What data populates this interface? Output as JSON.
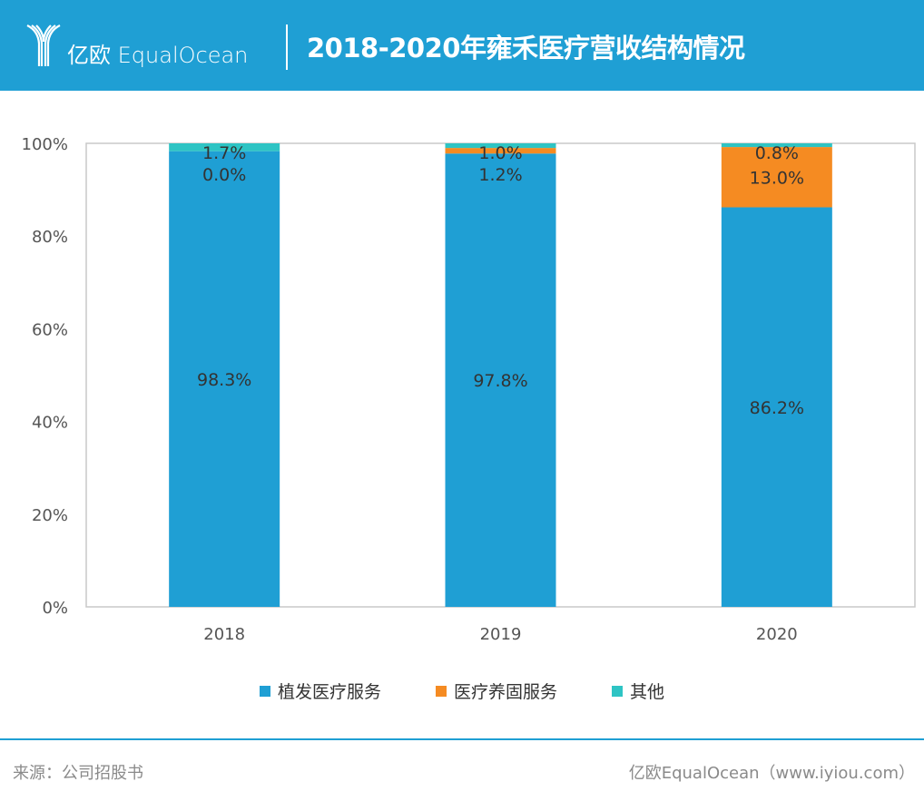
{
  "header": {
    "logo_text": "亿欧 EqualOcean",
    "title": "2018-2020年雍禾医疗营收结构情况"
  },
  "chart_data": {
    "type": "bar",
    "stacked": true,
    "percent": true,
    "categories": [
      "2018",
      "2019",
      "2020"
    ],
    "series": [
      {
        "name": "植发医疗服务",
        "color": "#1f9fd4",
        "values": [
          98.3,
          97.8,
          86.2
        ],
        "labels": [
          "98.3%",
          "97.8%",
          "86.2%"
        ]
      },
      {
        "name": "医疗养固服务",
        "color": "#f58b22",
        "values": [
          0.0,
          1.2,
          13.0
        ],
        "labels": [
          "0.0%",
          "1.2%",
          "13.0%"
        ]
      },
      {
        "name": "其他",
        "color": "#2ec4c4",
        "values": [
          1.7,
          1.0,
          0.8
        ],
        "labels": [
          "1.7%",
          "1.0%",
          "0.8%"
        ]
      }
    ],
    "yticks": [
      "0%",
      "20%",
      "40%",
      "60%",
      "80%",
      "100%"
    ],
    "ylim": [
      0,
      100
    ],
    "grid": false,
    "legend": "bottom"
  },
  "footer": {
    "source": "来源：公司招股书",
    "credit": "亿欧EqualOcean（www.iyiou.com）"
  }
}
